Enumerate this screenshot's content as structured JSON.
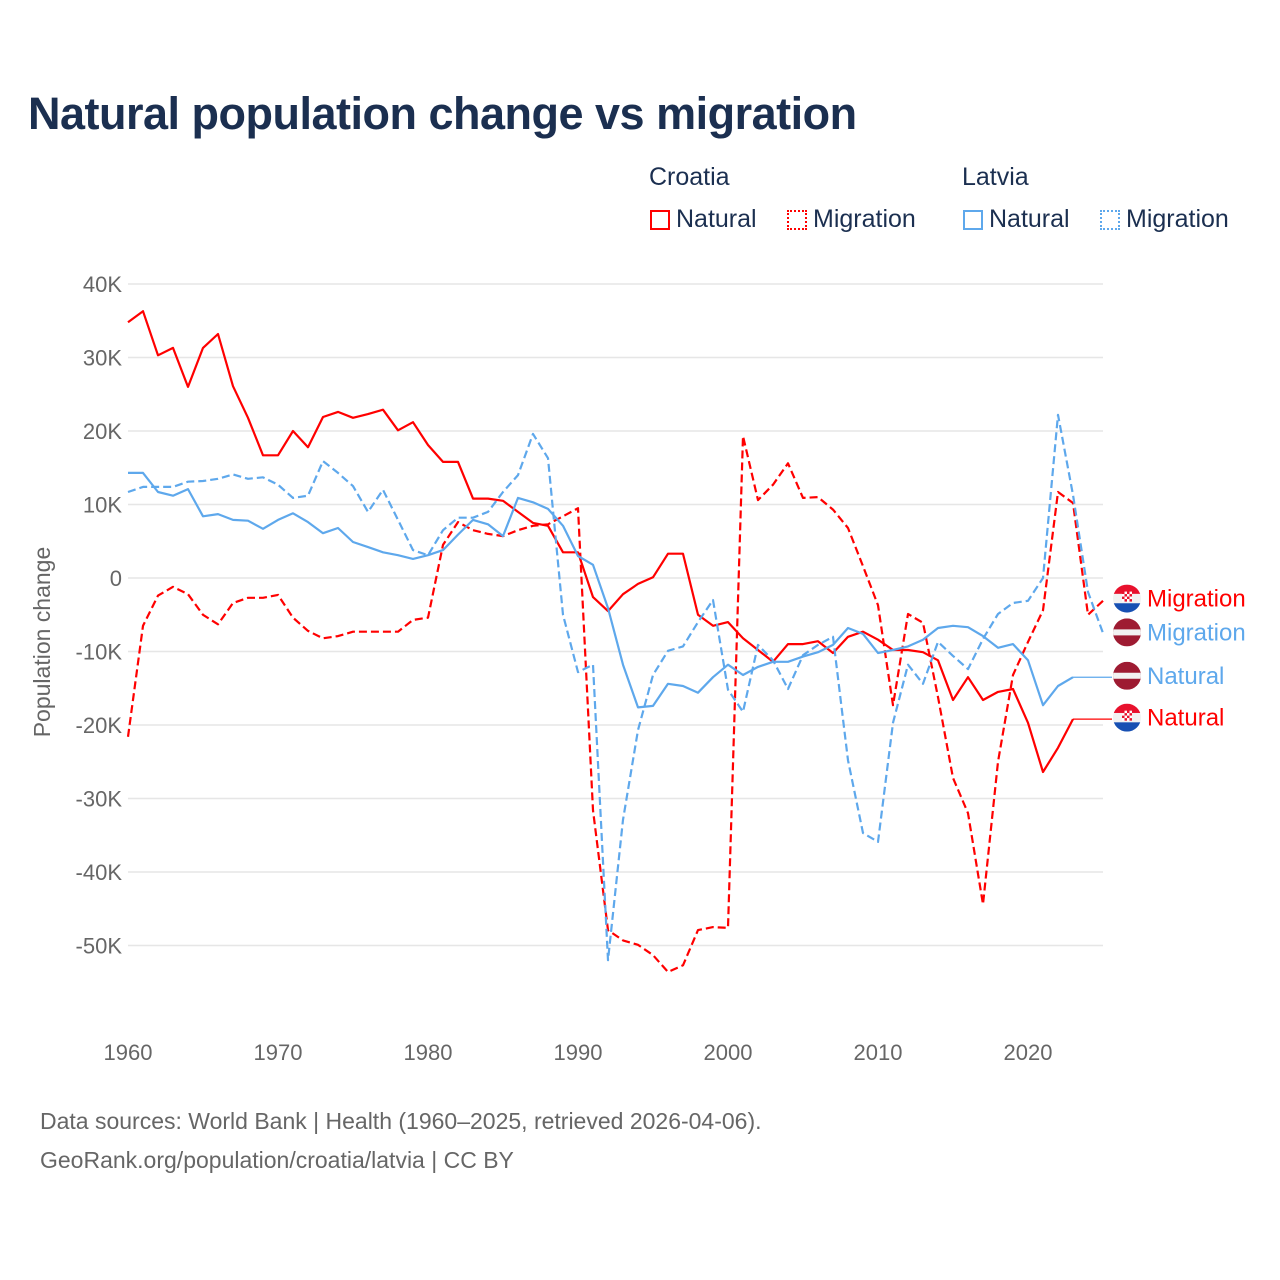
{
  "chart_data": {
    "type": "line",
    "title": "Natural population change vs migration",
    "xlabel": "",
    "ylabel": "Population change",
    "xlim": [
      1960,
      2025
    ],
    "ylim": [
      -60000,
      40000
    ],
    "x_ticks": [
      "1960",
      "1970",
      "1980",
      "1990",
      "2000",
      "2010",
      "2020"
    ],
    "y_ticks": [
      {
        "v": 40000,
        "label": "40K"
      },
      {
        "v": 30000,
        "label": "30K"
      },
      {
        "v": 20000,
        "label": "20K"
      },
      {
        "v": 10000,
        "label": "10K"
      },
      {
        "v": 0,
        "label": "0"
      },
      {
        "v": -10000,
        "label": "-10K"
      },
      {
        "v": -20000,
        "label": "-20K"
      },
      {
        "v": -30000,
        "label": "-30K"
      },
      {
        "v": -40000,
        "label": "-40K"
      },
      {
        "v": -50000,
        "label": "-50K"
      }
    ],
    "grid": true,
    "legend": {
      "placement": "top-right",
      "groups": [
        {
          "country": "Croatia",
          "items": [
            "Natural",
            "Migration"
          ]
        },
        {
          "country": "Latvia",
          "items": [
            "Natural",
            "Migration"
          ]
        }
      ]
    },
    "series": [
      {
        "name": "Natural",
        "country": "Croatia",
        "color": "#ff0000",
        "dashed": false,
        "start": 1960,
        "values": [
          34800,
          36300,
          30300,
          31300,
          26000,
          31300,
          33200,
          26100,
          21800,
          16700,
          16700,
          20000,
          17800,
          21900,
          22600,
          21800,
          22300,
          22900,
          20100,
          21200,
          18100,
          15800,
          15800,
          10800,
          10800,
          10500,
          9000,
          7500,
          7100,
          3500,
          3500,
          -2600,
          -4500,
          -2200,
          -800,
          100,
          3300,
          3300,
          -5000,
          -6500,
          -6000,
          -8200,
          -9800,
          -11400,
          -9000,
          -9000,
          -8600,
          -10200,
          -8000,
          -7300,
          -8400,
          -9800,
          -9800,
          -10100,
          -11200,
          -16600,
          -13500,
          -16600,
          -15500,
          -15100,
          -19700,
          -26400,
          -23100,
          -19200
        ]
      },
      {
        "name": "Migration",
        "country": "Croatia",
        "color": "#ff0000",
        "dashed": true,
        "start": 1960,
        "values": [
          -21600,
          -6500,
          -2400,
          -1200,
          -2200,
          -5000,
          -6300,
          -3400,
          -2700,
          -2700,
          -2300,
          -5400,
          -7200,
          -8200,
          -7900,
          -7300,
          -7300,
          -7300,
          -7300,
          -5700,
          -5400,
          4500,
          7600,
          6500,
          6000,
          5700,
          6500,
          7100,
          7300,
          8400,
          9500,
          -31600,
          -47900,
          -49300,
          -49900,
          -51300,
          -53600,
          -52700,
          -47900,
          -47500,
          -47600,
          19300,
          10600,
          12700,
          15600,
          10900,
          11000,
          9300,
          6800,
          1600,
          -3700,
          -17300,
          -4900,
          -6100,
          -16200,
          -27200,
          -32000,
          -44400,
          -25000,
          -13200,
          -8700,
          -4400,
          11700,
          10200,
          -5000,
          -3100
        ]
      },
      {
        "name": "Natural",
        "country": "Latvia",
        "color": "#5ea8ec",
        "dashed": false,
        "start": 1960,
        "values": [
          14300,
          14300,
          11700,
          11200,
          12100,
          8400,
          8700,
          7900,
          7800,
          6700,
          7900,
          8800,
          7600,
          6100,
          6800,
          4900,
          4200,
          3500,
          3100,
          2600,
          3100,
          3800,
          5900,
          7900,
          7300,
          5700,
          10900,
          10300,
          9400,
          7100,
          3000,
          1800,
          -4100,
          -11800,
          -17600,
          -17400,
          -14400,
          -14700,
          -15600,
          -13500,
          -11800,
          -13200,
          -12100,
          -11400,
          -11400,
          -10700,
          -10100,
          -9100,
          -6800,
          -7600,
          -10200,
          -9800,
          -9300,
          -8400,
          -6800,
          -6500,
          -6700,
          -7900,
          -9500,
          -9000,
          -11200,
          -17300,
          -14700,
          -13500
        ]
      },
      {
        "name": "Migration",
        "country": "Latvia",
        "color": "#5ea8ec",
        "dashed": true,
        "start": 1960,
        "values": [
          11700,
          12400,
          12400,
          12400,
          13100,
          13200,
          13500,
          14100,
          13500,
          13700,
          12700,
          10900,
          11200,
          15900,
          14300,
          12500,
          9000,
          12000,
          7900,
          3800,
          3100,
          6500,
          8200,
          8200,
          9000,
          11700,
          14000,
          19600,
          16300,
          -5000,
          -12800,
          -11800,
          -52000,
          -32900,
          -20700,
          -13200,
          -9900,
          -9300,
          -6000,
          -3000,
          -15200,
          -18200,
          -9100,
          -11200,
          -15100,
          -10500,
          -9100,
          -8000,
          -24800,
          -34700,
          -35900,
          -19700,
          -11800,
          -14400,
          -8700,
          -10600,
          -12400,
          -8300,
          -4900,
          -3400,
          -3100,
          0,
          22200,
          11300,
          -1900,
          -7500
        ]
      }
    ],
    "end_labels": [
      {
        "text": "Migration",
        "country": "Croatia",
        "color": "#ff0000",
        "value": -2800
      },
      {
        "text": "Migration",
        "country": "Latvia",
        "color": "#5ea8ec",
        "value": -7400
      },
      {
        "text": "Natural",
        "country": "Latvia",
        "color": "#5ea8ec",
        "value": -13300
      },
      {
        "text": "Natural",
        "country": "Croatia",
        "color": "#ff0000",
        "value": -19000
      }
    ]
  },
  "legend": {
    "croatia": "Croatia",
    "latvia": "Latvia",
    "natural": "Natural",
    "migration": "Migration"
  },
  "footer": {
    "line1": "Data sources: World Bank | Health (1960–2025, retrieved 2026-04-06).",
    "line2": "GeoRank.org/population/croatia/latvia | CC BY"
  }
}
